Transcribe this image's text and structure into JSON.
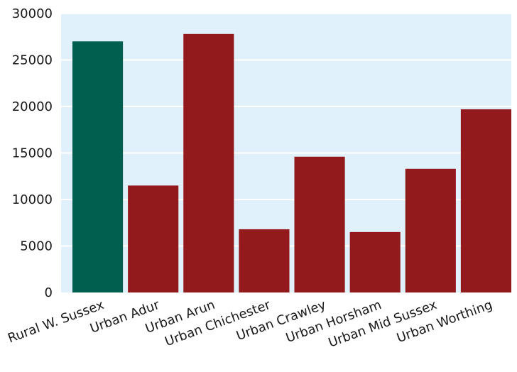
{
  "chart_data": {
    "type": "bar",
    "title": "",
    "xlabel": "",
    "ylabel": "",
    "categories": [
      "Rural W. Sussex",
      "Urban Adur",
      "Urban Arun",
      "Urban Chichester",
      "Urban Crawley",
      "Urban Horsham",
      "Urban Mid Sussex",
      "Urban Worthing"
    ],
    "values": [
      27000,
      11500,
      27800,
      6800,
      14600,
      6500,
      13300,
      19700
    ],
    "bar_colors": [
      "#005f4f",
      "#921a1d",
      "#921a1d",
      "#921a1d",
      "#921a1d",
      "#921a1d",
      "#921a1d",
      "#921a1d"
    ],
    "ylim": [
      0,
      30000
    ],
    "yticks": [
      0,
      5000,
      10000,
      15000,
      20000,
      25000,
      30000
    ],
    "ytick_labels": [
      "0",
      "5000",
      "10000",
      "15000",
      "20000",
      "25000",
      "30000"
    ],
    "grid": true,
    "background_color": "#e1f1fb",
    "grid_color": "#ffffff"
  }
}
